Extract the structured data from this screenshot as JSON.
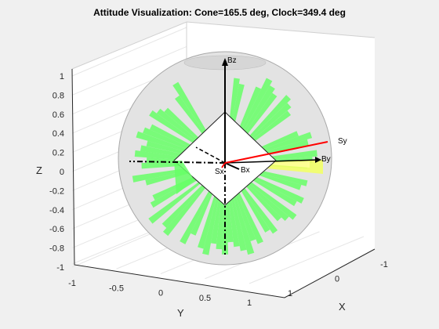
{
  "chart_data": {
    "type": "scatter",
    "title": "Attitude Visualization: Cone=165.5 deg, Clock=349.4 deg",
    "cone_deg": 165.5,
    "clock_deg": 349.4,
    "xlabel": "X",
    "ylabel": "Y",
    "zlabel": "Z",
    "xlim": [
      -1,
      1
    ],
    "ylim": [
      -1,
      1
    ],
    "zlim": [
      -1,
      1
    ],
    "x_ticks": [
      "-1",
      "0",
      "1"
    ],
    "y_ticks": [
      "-1",
      "-0.5",
      "0",
      "0.5",
      "1"
    ],
    "z_ticks": [
      "-1",
      "-0.8",
      "-0.6",
      "-0.4",
      "-0.2",
      "0",
      "0.2",
      "0.4",
      "0.6",
      "0.8",
      "1"
    ],
    "grid": true,
    "view": "3d",
    "vectors": [
      {
        "name": "Bz",
        "color": "#000000"
      },
      {
        "name": "By",
        "color": "#000000"
      },
      {
        "name": "Bx",
        "color": "#000000"
      },
      {
        "name": "Sy",
        "color": "#ff0000"
      },
      {
        "name": "Sx",
        "color": "#000000"
      }
    ],
    "colors": {
      "sphere": "#d9d9d9",
      "coverage": "#66ff66",
      "sun_cone": "#f2ff66",
      "panel": "#ffffff"
    }
  }
}
